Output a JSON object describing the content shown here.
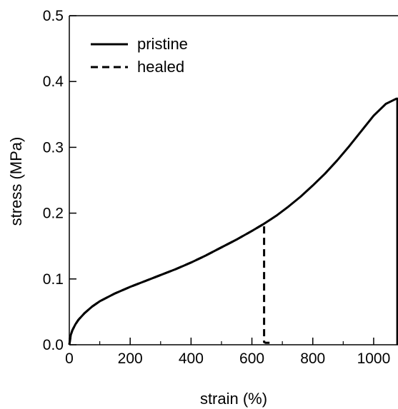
{
  "chart_data": {
    "type": "line",
    "xlabel": "strain (%)",
    "ylabel": "stress (MPa)",
    "xlim": [
      0,
      1080
    ],
    "ylim": [
      0,
      0.5
    ],
    "xticks": [
      "0",
      "200",
      "400",
      "600",
      "800",
      "1000"
    ],
    "xtick_values": [
      0,
      200,
      400,
      600,
      800,
      1000
    ],
    "yticks": [
      "0.0",
      "0.1",
      "0.2",
      "0.3",
      "0.4",
      "0.5"
    ],
    "ytick_values": [
      0.0,
      0.1,
      0.2,
      0.3,
      0.4,
      0.5
    ],
    "legend_position": "top-left",
    "series": [
      {
        "name": "pristine",
        "style": "solid",
        "color": "#000000",
        "x": [
          0,
          5,
          10,
          20,
          30,
          50,
          75,
          100,
          150,
          200,
          250,
          300,
          350,
          400,
          450,
          500,
          550,
          600,
          640,
          680,
          720,
          760,
          800,
          840,
          880,
          920,
          960,
          1000,
          1040,
          1075,
          1078,
          1078
        ],
        "y": [
          0.0,
          0.015,
          0.022,
          0.031,
          0.038,
          0.048,
          0.058,
          0.066,
          0.078,
          0.088,
          0.097,
          0.106,
          0.115,
          0.125,
          0.136,
          0.148,
          0.16,
          0.173,
          0.184,
          0.196,
          0.21,
          0.225,
          0.242,
          0.26,
          0.28,
          0.302,
          0.325,
          0.348,
          0.366,
          0.374,
          0.374,
          0.0
        ]
      },
      {
        "name": "healed",
        "style": "dashed",
        "color": "#000000",
        "x": [
          0,
          5,
          10,
          20,
          30,
          50,
          75,
          100,
          150,
          200,
          250,
          300,
          350,
          400,
          450,
          500,
          550,
          600,
          640,
          640,
          645,
          660
        ],
        "y": [
          0.0,
          0.015,
          0.022,
          0.031,
          0.038,
          0.048,
          0.058,
          0.066,
          0.078,
          0.088,
          0.097,
          0.106,
          0.115,
          0.125,
          0.136,
          0.148,
          0.16,
          0.173,
          0.184,
          0.004,
          0.003,
          0.003
        ]
      }
    ]
  }
}
